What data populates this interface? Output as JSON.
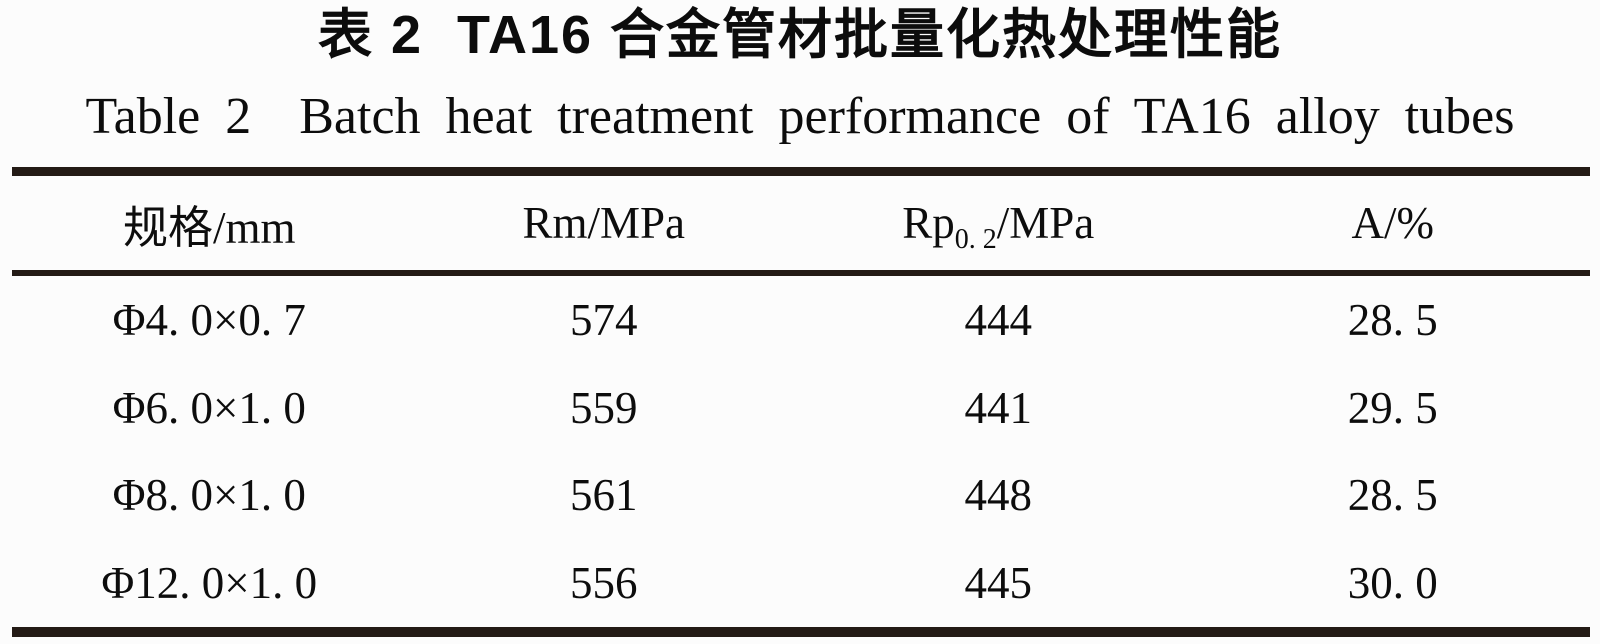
{
  "titles": {
    "zh_label": "表 2",
    "zh_text": "TA16 合金管材批量化热处理性能",
    "en_label": "Table 2",
    "en_text": "Batch heat treatment performance of TA16 alloy tubes"
  },
  "table": {
    "header": {
      "col1": "规格/mm",
      "col2": "Rm/MPa",
      "col3_base": "Rp",
      "col3_sub": "0. 2",
      "col3_suffix": "/MPa",
      "col4": "A/%"
    },
    "rows": [
      {
        "spec": "Φ4. 0×0. 7",
        "rm": "574",
        "rp": "444",
        "a": "28. 5"
      },
      {
        "spec": "Φ6. 0×1. 0",
        "rm": "559",
        "rp": "441",
        "a": "29. 5"
      },
      {
        "spec": "Φ8. 0×1. 0",
        "rm": "561",
        "rp": "448",
        "a": "28. 5"
      },
      {
        "spec": "Φ12. 0×1. 0",
        "rm": "556",
        "rp": "445",
        "a": "30. 0"
      }
    ]
  },
  "colors": {
    "rule": "#241b16",
    "text": "#111111",
    "background": "#fcfcfc"
  }
}
